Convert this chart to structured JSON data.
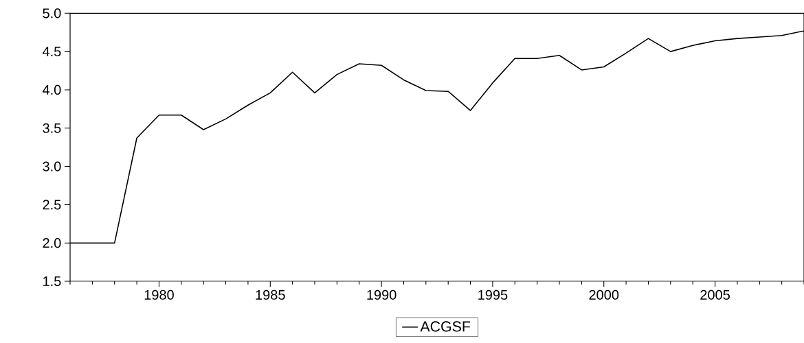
{
  "chart_data": {
    "type": "line",
    "x": [
      1976,
      1977,
      1978,
      1979,
      1980,
      1981,
      1982,
      1983,
      1984,
      1985,
      1986,
      1987,
      1988,
      1989,
      1990,
      1991,
      1992,
      1993,
      1994,
      1995,
      1996,
      1997,
      1998,
      1999,
      2000,
      2001,
      2002,
      2003,
      2004,
      2005,
      2006,
      2007,
      2008,
      2009
    ],
    "series": [
      {
        "name": "ACGSF",
        "color": "#000000",
        "values": [
          2.0,
          2.0,
          2.0,
          3.37,
          3.67,
          3.67,
          3.48,
          3.62,
          3.8,
          3.96,
          4.23,
          3.96,
          4.2,
          4.34,
          4.32,
          4.13,
          3.99,
          3.98,
          3.73,
          4.09,
          4.41,
          4.41,
          4.45,
          4.26,
          4.3,
          4.48,
          4.67,
          4.5,
          4.58,
          4.64,
          4.67,
          4.69,
          4.71,
          4.77
        ]
      }
    ],
    "xlim": [
      1976,
      2009
    ],
    "ylim": [
      1.5,
      5.0
    ],
    "xticks": [
      {
        "value": 1976,
        "label": null
      },
      {
        "value": 1977,
        "label": null
      },
      {
        "value": 1978,
        "label": null
      },
      {
        "value": 1979,
        "label": null
      },
      1980,
      {
        "value": 1981,
        "label": null
      },
      {
        "value": 1982,
        "label": null
      },
      {
        "value": 1983,
        "label": null
      },
      {
        "value": 1984,
        "label": null
      },
      1985,
      {
        "value": 1986,
        "label": null
      },
      {
        "value": 1987,
        "label": null
      },
      {
        "value": 1988,
        "label": null
      },
      {
        "value": 1989,
        "label": null
      },
      1990,
      {
        "value": 1991,
        "label": null
      },
      {
        "value": 1992,
        "label": null
      },
      {
        "value": 1993,
        "label": null
      },
      {
        "value": 1994,
        "label": null
      },
      1995,
      {
        "value": 1996,
        "label": null
      },
      {
        "value": 1997,
        "label": null
      },
      {
        "value": 1998,
        "label": null
      },
      {
        "value": 1999,
        "label": null
      },
      2000,
      {
        "value": 2001,
        "label": null
      },
      {
        "value": 2002,
        "label": null
      },
      {
        "value": 2003,
        "label": null
      },
      {
        "value": 2004,
        "label": null
      },
      2005,
      {
        "value": 2006,
        "label": null
      },
      {
        "value": 2007,
        "label": null
      },
      {
        "value": 2008,
        "label": null
      },
      {
        "value": 2009,
        "label": null
      }
    ],
    "yticks": [
      1.5,
      {
        "value": 2,
        "label": "2.0"
      },
      2.5,
      {
        "value": 3,
        "label": "3.0"
      },
      3.5,
      {
        "value": 4,
        "label": "4.0"
      },
      4.5,
      {
        "value": 5,
        "label": "5.0"
      }
    ],
    "legend": "bottom",
    "marker": "none",
    "line_style": "solid",
    "grid": false
  }
}
